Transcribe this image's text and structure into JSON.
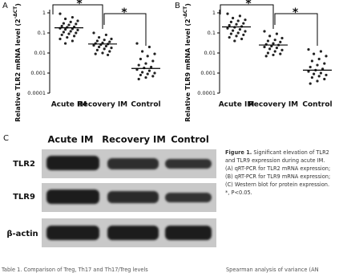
{
  "panels": [
    "A",
    "B",
    "C"
  ],
  "chart_data": [
    {
      "type": "dot",
      "ylabel": "Relative TLR2 mRNA level (2",
      "ylabel_sup": "-ΔCT",
      "ylabel_end": ")",
      "log_y": true,
      "ylim": [
        0.0001,
        1
      ],
      "yticks": [
        0.0001,
        0.001,
        0.01,
        0.1,
        1
      ],
      "categories": [
        "Acute IM",
        "Recovery IM",
        "Control"
      ],
      "medians": [
        0.18,
        0.028,
        0.0017
      ],
      "significance": [
        "*",
        "*"
      ],
      "groups": [
        [
          0.9,
          0.6,
          0.5,
          0.4,
          0.35,
          0.3,
          0.28,
          0.25,
          0.22,
          0.2,
          0.19,
          0.17,
          0.16,
          0.15,
          0.14,
          0.12,
          0.11,
          0.1,
          0.09,
          0.08,
          0.07,
          0.06,
          0.05,
          0.04,
          0.03
        ],
        [
          0.1,
          0.08,
          0.06,
          0.05,
          0.045,
          0.04,
          0.036,
          0.032,
          0.03,
          0.028,
          0.026,
          0.024,
          0.022,
          0.02,
          0.018,
          0.016,
          0.014,
          0.012,
          0.01,
          0.009,
          0.008
        ],
        [
          0.03,
          0.02,
          0.012,
          0.009,
          0.007,
          0.005,
          0.004,
          0.003,
          0.0025,
          0.002,
          0.0018,
          0.0015,
          0.0013,
          0.0011,
          0.001,
          0.0009,
          0.0008,
          0.0007,
          0.0006,
          0.0005
        ]
      ]
    },
    {
      "type": "dot",
      "ylabel": "Relative TLR9 mRNA level (2",
      "ylabel_sup": "-ΔCT",
      "ylabel_end": ")",
      "log_y": true,
      "ylim": [
        0.0001,
        1
      ],
      "yticks": [
        0.0001,
        0.001,
        0.01,
        0.1,
        1
      ],
      "categories": [
        "Acute IM",
        "Recovery IM",
        "Control"
      ],
      "medians": [
        0.2,
        0.025,
        0.0014
      ],
      "significance": [
        "*",
        "*"
      ],
      "groups": [
        [
          0.9,
          0.7,
          0.55,
          0.45,
          0.4,
          0.35,
          0.3,
          0.27,
          0.24,
          0.21,
          0.19,
          0.17,
          0.15,
          0.13,
          0.12,
          0.1,
          0.09,
          0.08,
          0.07,
          0.06,
          0.05,
          0.04
        ],
        [
          0.12,
          0.09,
          0.07,
          0.055,
          0.045,
          0.04,
          0.035,
          0.03,
          0.027,
          0.025,
          0.022,
          0.02,
          0.018,
          0.016,
          0.014,
          0.012,
          0.01,
          0.009,
          0.008,
          0.007
        ],
        [
          0.015,
          0.012,
          0.009,
          0.007,
          0.005,
          0.004,
          0.003,
          0.0025,
          0.002,
          0.0016,
          0.0014,
          0.0012,
          0.001,
          0.0009,
          0.0008,
          0.0007,
          0.0006,
          0.0005,
          0.0004,
          0.0003
        ]
      ]
    }
  ],
  "blot": {
    "columns": [
      "Acute IM",
      "Recovery IM",
      "Control"
    ],
    "rows": [
      "TLR2",
      "TLR9",
      "β-actin"
    ]
  },
  "caption": {
    "label": "Figure 1.",
    "lines": [
      "Significant elevation of TLR2",
      "and TLR9 expression during acute IM.",
      "(A) qRT-PCR for TLR2 mRNA expression;",
      "(B) qRT-PCR for TLR9 mRNA expression;",
      "(C) Western blot for protein expression.",
      "*, P<0.05."
    ]
  },
  "footer": {
    "left": "Table 1. Comparison of Treg, Th17 and Th17/Treg levels",
    "right": "Spearman analysis of variance (AN"
  }
}
